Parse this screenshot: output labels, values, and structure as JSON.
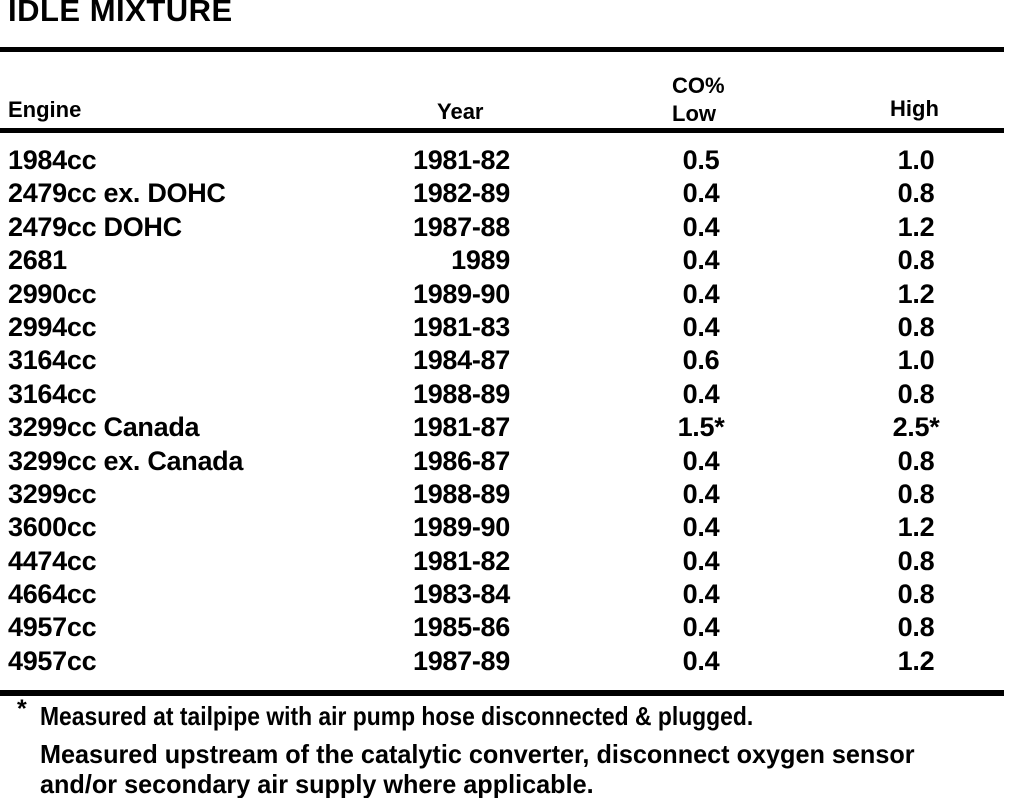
{
  "title": "IDLE MIXTURE",
  "table": {
    "headers": {
      "engine": "Engine",
      "year": "Year",
      "co_group": "CO%",
      "low": "Low",
      "high": "High"
    },
    "rows": [
      {
        "engine": "1984cc",
        "year": "1981-82",
        "low": "0.5",
        "high": "1.0"
      },
      {
        "engine": "2479cc ex. DOHC",
        "year": "1982-89",
        "low": "0.4",
        "high": "0.8"
      },
      {
        "engine": "2479cc DOHC",
        "year": "1987-88",
        "low": "0.4",
        "high": "1.2"
      },
      {
        "engine": "2681",
        "year": "1989",
        "low": "0.4",
        "high": "0.8"
      },
      {
        "engine": "2990cc",
        "year": "1989-90",
        "low": "0.4",
        "high": "1.2"
      },
      {
        "engine": "2994cc",
        "year": "1981-83",
        "low": "0.4",
        "high": "0.8"
      },
      {
        "engine": "3164cc",
        "year": "1984-87",
        "low": "0.6",
        "high": "1.0"
      },
      {
        "engine": "3164cc",
        "year": "1988-89",
        "low": "0.4",
        "high": "0.8"
      },
      {
        "engine": "3299cc Canada",
        "year": "1981-87",
        "low": "1.5*",
        "high": "2.5*"
      },
      {
        "engine": "3299cc ex. Canada",
        "year": "1986-87",
        "low": "0.4",
        "high": "0.8"
      },
      {
        "engine": "3299cc",
        "year": "1988-89",
        "low": "0.4",
        "high": "0.8"
      },
      {
        "engine": "3600cc",
        "year": "1989-90",
        "low": "0.4",
        "high": "1.2"
      },
      {
        "engine": "4474cc",
        "year": "1981-82",
        "low": "0.4",
        "high": "0.8"
      },
      {
        "engine": "4664cc",
        "year": "1983-84",
        "low": "0.4",
        "high": "0.8"
      },
      {
        "engine": "4957cc",
        "year": "1985-86",
        "low": "0.4",
        "high": "0.8"
      },
      {
        "engine": "4957cc",
        "year": "1987-89",
        "low": "0.4",
        "high": "1.2"
      }
    ]
  },
  "footnote": {
    "marker": "*",
    "line1": "Measured at tailpipe with air pump hose disconnected & plugged.",
    "line2": "Measured upstream of the catalytic converter, disconnect oxygen sensor",
    "line3": "and/or secondary air supply where applicable."
  }
}
